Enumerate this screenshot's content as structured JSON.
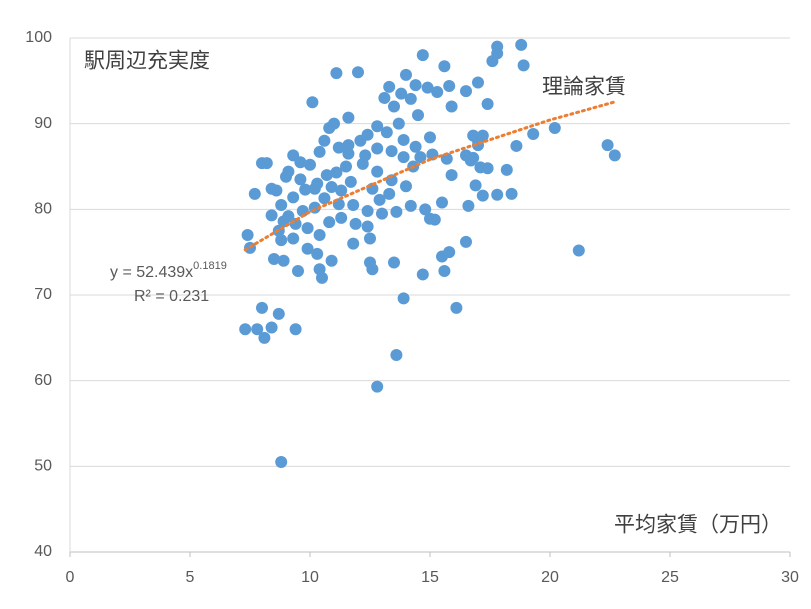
{
  "chart_data": {
    "type": "scatter",
    "y_label": "駅周辺充実度",
    "x_label": "平均家賃（万円）",
    "color": "#5b9bd5",
    "xlim": [
      0,
      30
    ],
    "xticks": [
      0,
      5,
      10,
      15,
      20,
      25,
      30
    ],
    "ylim": [
      40,
      100
    ],
    "yticks": [
      40,
      50,
      60,
      70,
      80,
      90,
      100
    ],
    "grid": true,
    "x": [
      8.8,
      12.8,
      13.6,
      7.3,
      7.8,
      8.1,
      8.4,
      8.7,
      9.4,
      8,
      13.9,
      16.1,
      14.7,
      15.6,
      16.5,
      21.2,
      22.4,
      22.7,
      20.2,
      19.3,
      18.6,
      18.8,
      17.8,
      17.8,
      17.6,
      18.9,
      14.7,
      15.6,
      12,
      11.1,
      13.3,
      14,
      10.1,
      11.6,
      7.4,
      7.5,
      7.7,
      8,
      8.2,
      8.4,
      18.4,
      17.8,
      17.2,
      18.2,
      15.9,
      16.6,
      16.9,
      17.1,
      17.4,
      15.5,
      15,
      15.2,
      15.5,
      15.8,
      12.6,
      12.5,
      13.5,
      10.5,
      10.4,
      10.9,
      9.5,
      8.5,
      8.9,
      8.7,
      11.8,
      12.5,
      16.5,
      16.8,
      17,
      17.2,
      16.8,
      16.7,
      17,
      17.4,
      17,
      16.5,
      15.8,
      15.9,
      15.3,
      14.9,
      14.4,
      14.2,
      13.8,
      13.1,
      13.5,
      14.5,
      13.7,
      13.2,
      12.8,
      12.4,
      12.1,
      11.6,
      11.2,
      10.8,
      10.6,
      11,
      10.4,
      10,
      9.6,
      9.3,
      9.1,
      9.6,
      10.2,
      10.6,
      11.2,
      11.8,
      12.4,
      13,
      13.6,
      14.2,
      14.8,
      14,
      13.4,
      12.8,
      12.2,
      11.5,
      11.1,
      10.7,
      10.3,
      9.8,
      9.3,
      8.8,
      8.4,
      8.9,
      9.4,
      9.9,
      10.4,
      9.3,
      8.8,
      9.9,
      10.3,
      10.8,
      11.3,
      11.9,
      12.4,
      12.9,
      13.3,
      13.9,
      14.6,
      15.1,
      15.7,
      15,
      14.4,
      13.9,
      13.4,
      12.8,
      12.3,
      11.7,
      11.3,
      10.9,
      10.2,
      9.7,
      9.1,
      8.6,
      9,
      11.6,
      12.6,
      14.3
    ],
    "values": [
      50.5,
      59.3,
      63,
      66,
      66,
      65,
      66.2,
      67.8,
      66,
      68.5,
      69.6,
      68.5,
      72.4,
      72.8,
      76.2,
      75.2,
      87.5,
      86.3,
      89.5,
      88.8,
      87.4,
      99.2,
      99,
      98.2,
      97.3,
      96.8,
      98,
      96.7,
      96,
      95.9,
      94.3,
      95.7,
      92.5,
      90.7,
      77,
      75.5,
      81.8,
      85.4,
      85.4,
      82.4,
      81.8,
      81.7,
      81.6,
      84.6,
      84,
      80.4,
      82.8,
      84.9,
      84.8,
      80.8,
      78.9,
      78.8,
      74.5,
      75,
      73,
      73.8,
      73.8,
      72,
      73,
      74,
      72.8,
      74.2,
      74,
      77.5,
      76,
      76.6,
      86.3,
      86,
      88,
      88.6,
      88.6,
      85.7,
      87.5,
      92.3,
      94.8,
      93.8,
      94.4,
      92,
      93.7,
      94.2,
      94.5,
      92.9,
      93.5,
      93,
      92,
      91,
      90,
      89,
      89.7,
      88.7,
      88,
      87.5,
      87.2,
      89.5,
      88,
      90,
      86.7,
      85.2,
      85.5,
      86.3,
      84.4,
      83.5,
      82.4,
      81.3,
      80.6,
      80.5,
      79.8,
      79.5,
      79.7,
      80.4,
      80,
      82.7,
      83.4,
      84.4,
      85.3,
      85,
      84.3,
      84,
      83,
      82.3,
      81.4,
      80.5,
      79.3,
      78.6,
      78.3,
      77.8,
      77,
      76.6,
      76.4,
      75.4,
      74.8,
      78.5,
      79,
      78.3,
      78,
      81.1,
      81.8,
      86.1,
      86.1,
      86.4,
      85.9,
      88.4,
      87.3,
      88.1,
      86.8,
      87.1,
      86.3,
      83.2,
      82.2,
      82.6,
      80.2,
      79.8,
      79.2,
      82.2,
      83.8,
      86.5,
      82.4,
      85
    ],
    "trendline": {
      "name": "理論家賃",
      "color": "#ed7d31",
      "x": [
        7.3,
        10,
        15,
        20,
        22.7
      ],
      "values": [
        75.28,
        79.72,
        85.82,
        90.43,
        92.54
      ]
    },
    "equation": {
      "text": "y = 52.439x",
      "exponent": "0.1819"
    },
    "r_squared": "R² = 0.231"
  }
}
